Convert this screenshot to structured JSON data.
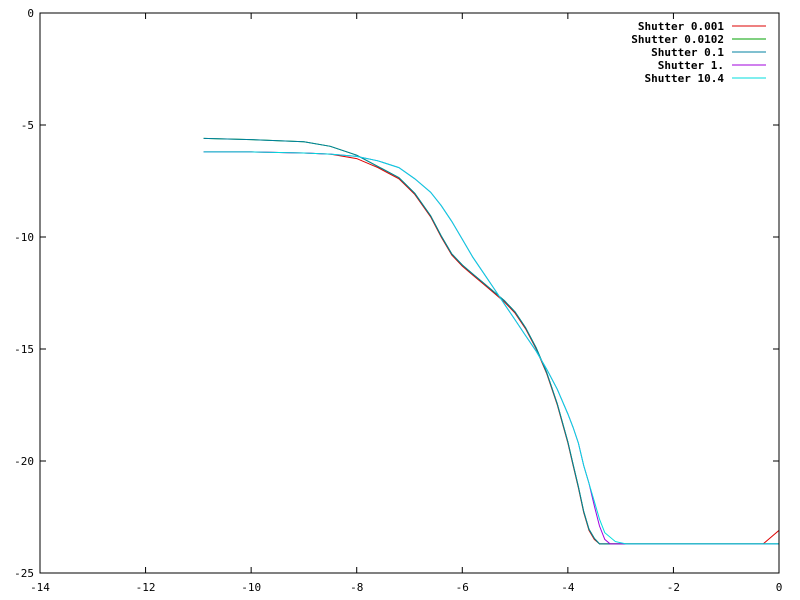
{
  "chart_data": {
    "type": "line",
    "title": "",
    "xlabel": "",
    "ylabel": "",
    "xlim": [
      -14,
      0
    ],
    "ylim": [
      -25,
      0
    ],
    "xticks": [
      -14,
      -12,
      -10,
      -8,
      -6,
      -4,
      -2,
      0
    ],
    "yticks": [
      0,
      -5,
      -10,
      -15,
      -20,
      -25
    ],
    "grid": false,
    "legend_position": "top-right",
    "series": [
      {
        "name": "Shutter 0.001",
        "color": "#dd0000",
        "points": [
          [
            -10.9,
            -6.2
          ],
          [
            -10,
            -6.2
          ],
          [
            -9,
            -6.25
          ],
          [
            -8.5,
            -6.3
          ],
          [
            -8,
            -6.5
          ],
          [
            -7.6,
            -6.9
          ],
          [
            -7.2,
            -7.4
          ],
          [
            -6.9,
            -8.1
          ],
          [
            -6.6,
            -9.1
          ],
          [
            -6.4,
            -10.0
          ],
          [
            -6.2,
            -10.8
          ],
          [
            -6.0,
            -11.3
          ],
          [
            -5.8,
            -11.7
          ],
          [
            -5.6,
            -12.1
          ],
          [
            -5.4,
            -12.5
          ],
          [
            -5.2,
            -12.9
          ],
          [
            -5.0,
            -13.4
          ],
          [
            -4.8,
            -14.1
          ],
          [
            -4.6,
            -15.0
          ],
          [
            -4.4,
            -16.1
          ],
          [
            -4.2,
            -17.5
          ],
          [
            -4.0,
            -19.2
          ],
          [
            -3.9,
            -20.2
          ],
          [
            -3.8,
            -21.2
          ],
          [
            -3.7,
            -22.3
          ],
          [
            -3.6,
            -23.1
          ],
          [
            -3.5,
            -23.5
          ],
          [
            -3.4,
            -23.7
          ],
          [
            -0.3,
            -23.7
          ],
          [
            0,
            -23.1
          ]
        ]
      },
      {
        "name": "Shutter 0.0102",
        "color": "#00a000",
        "points": [
          [
            -10.9,
            -5.6
          ],
          [
            -10,
            -5.65
          ],
          [
            -9,
            -5.75
          ],
          [
            -8.5,
            -5.95
          ],
          [
            -8,
            -6.35
          ],
          [
            -7.6,
            -6.85
          ],
          [
            -7.2,
            -7.35
          ],
          [
            -6.9,
            -8.05
          ],
          [
            -6.6,
            -9.05
          ],
          [
            -6.4,
            -9.95
          ],
          [
            -6.2,
            -10.75
          ],
          [
            -6.0,
            -11.25
          ],
          [
            -5.8,
            -11.65
          ],
          [
            -5.6,
            -12.05
          ],
          [
            -5.4,
            -12.45
          ],
          [
            -5.2,
            -12.85
          ],
          [
            -5.0,
            -13.35
          ],
          [
            -4.8,
            -14.05
          ],
          [
            -4.6,
            -14.95
          ],
          [
            -4.4,
            -16.05
          ],
          [
            -4.2,
            -17.45
          ],
          [
            -4.0,
            -19.15
          ],
          [
            -3.9,
            -20.15
          ],
          [
            -3.8,
            -21.15
          ],
          [
            -3.7,
            -22.25
          ],
          [
            -3.6,
            -23.05
          ],
          [
            -3.5,
            -23.45
          ],
          [
            -3.4,
            -23.7
          ],
          [
            0,
            -23.7
          ]
        ]
      },
      {
        "name": "Shutter 0.1",
        "color": "#0080a0",
        "points": [
          [
            -10.9,
            -5.6
          ],
          [
            -10,
            -5.65
          ],
          [
            -9,
            -5.75
          ],
          [
            -8.5,
            -5.95
          ],
          [
            -8,
            -6.35
          ],
          [
            -7.6,
            -6.85
          ],
          [
            -7.2,
            -7.35
          ],
          [
            -6.9,
            -8.05
          ],
          [
            -6.6,
            -9.05
          ],
          [
            -6.4,
            -9.95
          ],
          [
            -6.2,
            -10.75
          ],
          [
            -6.0,
            -11.25
          ],
          [
            -5.8,
            -11.65
          ],
          [
            -5.6,
            -12.05
          ],
          [
            -5.4,
            -12.45
          ],
          [
            -5.2,
            -12.85
          ],
          [
            -5.0,
            -13.35
          ],
          [
            -4.8,
            -14.05
          ],
          [
            -4.6,
            -14.95
          ],
          [
            -4.4,
            -16.05
          ],
          [
            -4.2,
            -17.45
          ],
          [
            -4.0,
            -19.15
          ],
          [
            -3.9,
            -20.15
          ],
          [
            -3.8,
            -21.15
          ],
          [
            -3.7,
            -22.25
          ],
          [
            -3.6,
            -23.05
          ],
          [
            -3.5,
            -23.45
          ],
          [
            -3.4,
            -23.7
          ],
          [
            0,
            -23.7
          ]
        ]
      },
      {
        "name": "Shutter 1.",
        "color": "#a000dd",
        "points": [
          [
            -10.9,
            -6.2
          ],
          [
            -10,
            -6.2
          ],
          [
            -9,
            -6.25
          ],
          [
            -8.5,
            -6.3
          ],
          [
            -8,
            -6.4
          ],
          [
            -7.6,
            -6.6
          ],
          [
            -7.2,
            -6.9
          ],
          [
            -6.9,
            -7.4
          ],
          [
            -6.6,
            -8.0
          ],
          [
            -6.4,
            -8.6
          ],
          [
            -6.2,
            -9.3
          ],
          [
            -6.0,
            -10.1
          ],
          [
            -5.8,
            -10.9
          ],
          [
            -5.6,
            -11.6
          ],
          [
            -5.4,
            -12.3
          ],
          [
            -5.2,
            -13.0
          ],
          [
            -5.0,
            -13.7
          ],
          [
            -4.8,
            -14.4
          ],
          [
            -4.6,
            -15.1
          ],
          [
            -4.4,
            -15.9
          ],
          [
            -4.2,
            -16.8
          ],
          [
            -4.0,
            -17.9
          ],
          [
            -3.9,
            -18.5
          ],
          [
            -3.8,
            -19.2
          ],
          [
            -3.7,
            -20.2
          ],
          [
            -3.6,
            -21.0
          ],
          [
            -3.5,
            -22.0
          ],
          [
            -3.4,
            -22.9
          ],
          [
            -3.3,
            -23.5
          ],
          [
            -3.2,
            -23.7
          ],
          [
            0,
            -23.7
          ]
        ]
      },
      {
        "name": "Shutter 10.4",
        "color": "#00dddd",
        "points": [
          [
            -10.9,
            -6.2
          ],
          [
            -10,
            -6.2
          ],
          [
            -9,
            -6.25
          ],
          [
            -8.5,
            -6.3
          ],
          [
            -8,
            -6.4
          ],
          [
            -7.6,
            -6.6
          ],
          [
            -7.2,
            -6.9
          ],
          [
            -6.9,
            -7.4
          ],
          [
            -6.6,
            -8.0
          ],
          [
            -6.4,
            -8.6
          ],
          [
            -6.2,
            -9.3
          ],
          [
            -6.0,
            -10.1
          ],
          [
            -5.8,
            -10.9
          ],
          [
            -5.6,
            -11.6
          ],
          [
            -5.4,
            -12.3
          ],
          [
            -5.2,
            -13.0
          ],
          [
            -5.0,
            -13.7
          ],
          [
            -4.8,
            -14.4
          ],
          [
            -4.6,
            -15.1
          ],
          [
            -4.4,
            -15.9
          ],
          [
            -4.2,
            -16.8
          ],
          [
            -4.0,
            -17.9
          ],
          [
            -3.9,
            -18.5
          ],
          [
            -3.8,
            -19.2
          ],
          [
            -3.7,
            -20.2
          ],
          [
            -3.6,
            -21.0
          ],
          [
            -3.5,
            -21.8
          ],
          [
            -3.4,
            -22.6
          ],
          [
            -3.3,
            -23.2
          ],
          [
            -3.1,
            -23.6
          ],
          [
            -2.9,
            -23.7
          ],
          [
            0,
            -23.7
          ]
        ]
      }
    ]
  }
}
